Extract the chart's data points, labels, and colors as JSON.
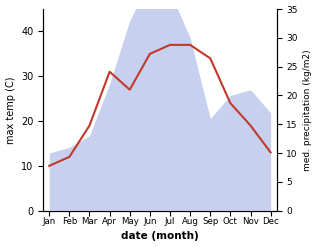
{
  "months": [
    "Jan",
    "Feb",
    "Mar",
    "Apr",
    "May",
    "Jun",
    "Jul",
    "Aug",
    "Sep",
    "Oct",
    "Nov",
    "Dec"
  ],
  "x": [
    0,
    1,
    2,
    3,
    4,
    5,
    6,
    7,
    8,
    9,
    10,
    11
  ],
  "temperature": [
    10,
    12,
    19,
    31,
    27,
    35,
    37,
    37,
    34,
    24,
    19,
    13
  ],
  "precipitation": [
    10,
    11,
    13,
    22,
    33,
    40,
    38,
    30,
    16,
    20,
    21,
    17
  ],
  "temp_color": "#c0392b",
  "precip_fill_color": "#c8d0f0",
  "ylabel_left": "max temp (C)",
  "ylabel_right": "med. precipitation (kg/m2)",
  "xlabel": "date (month)",
  "ylim_left": [
    0,
    45
  ],
  "ylim_right": [
    0,
    35
  ],
  "yticks_left": [
    0,
    10,
    20,
    30,
    40
  ],
  "yticks_right": [
    0,
    5,
    10,
    15,
    20,
    25,
    30,
    35
  ],
  "bg_color": "#ffffff",
  "line_width": 1.5,
  "precip_scale_factor": 1.2857
}
